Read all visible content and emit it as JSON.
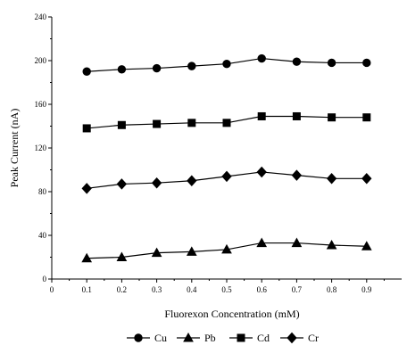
{
  "chart_data": {
    "type": "line",
    "xlabel": "Fluorexon Concentration (mM)",
    "ylabel": "Peak Current (nA)",
    "xlim": [
      0,
      1.0
    ],
    "ylim": [
      0,
      240
    ],
    "x_ticks": [
      "0",
      "0.1",
      "0.2",
      "0.3",
      "0.4",
      "0.5",
      "0.6",
      "0.7",
      "0.8",
      "0.9"
    ],
    "y_ticks": [
      "0",
      "40",
      "80",
      "120",
      "160",
      "200",
      "240"
    ],
    "grid": false,
    "legend_position": "bottom",
    "x": [
      0.1,
      0.2,
      0.3,
      0.4,
      0.5,
      0.6,
      0.7,
      0.8,
      0.9
    ],
    "series": [
      {
        "name": "Cu",
        "marker": "circle",
        "values": [
          190,
          192,
          193,
          195,
          197,
          202,
          199,
          198,
          198
        ]
      },
      {
        "name": "Pb",
        "marker": "triangle",
        "values": [
          19,
          20,
          24,
          25,
          27,
          33,
          33,
          31,
          30
        ]
      },
      {
        "name": "Cd",
        "marker": "square",
        "values": [
          138,
          141,
          142,
          143,
          143,
          149,
          149,
          148,
          148
        ]
      },
      {
        "name": "Cr",
        "marker": "diamond",
        "values": [
          83,
          87,
          88,
          90,
          94,
          98,
          95,
          92,
          92
        ]
      }
    ],
    "colors": {
      "line": "#000000",
      "marker": "#000000"
    }
  }
}
